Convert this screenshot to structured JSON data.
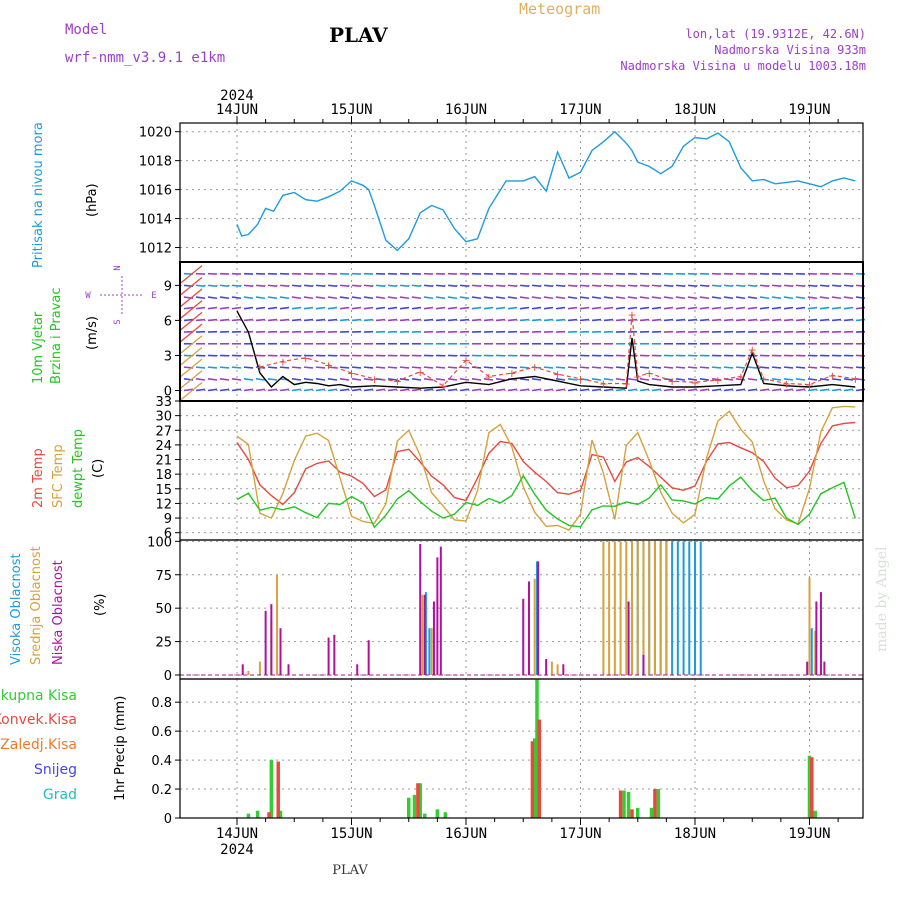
{
  "header": {
    "model_label": "Model",
    "model_name": "wrf-nmm_v3.9.1  e1km",
    "title": "PLAV",
    "meteogram_label": "Meteogram",
    "lonlat": "lon,lat (19.9312E, 42.6N)",
    "altitude": "Nadmorska Visina 933m",
    "model_altitude": "Nadmorska Visina u modelu 1003.18m",
    "year_top": "2024",
    "year_bottom": "2024",
    "footer": "PLAV",
    "watermark": "made by Angel"
  },
  "colors": {
    "pressure": "#1e9be0",
    "t2m": "#e8493f",
    "sfc": "#d6a23c",
    "dewpt": "#22c622",
    "total": "#33cc33",
    "convective": "#e8493f",
    "frozen": "#f07a2a",
    "snow": "#4444ee",
    "graupel": "#20c0c0",
    "high": "#1e9be0",
    "mid": "#d6a23c",
    "low": "#b0109e",
    "wind_speed": "#000000",
    "gust": "#e8493f",
    "axis_title": "#9b40c8",
    "meteogram": "#e0b060"
  },
  "chart_data": [
    {
      "type": "line",
      "panel": "pressure",
      "title_left": "Pritisak na nivou mora",
      "units": "(hPa)",
      "xdays": [
        "14JUN",
        "15JUN",
        "16JUN",
        "17JUN",
        "18JUN",
        "19JUN"
      ],
      "yticks": [
        1012,
        1014,
        1016,
        1018,
        1020
      ],
      "ylim": [
        1011,
        1020.6
      ],
      "series": [
        {
          "key": "pressure",
          "x": [
            0,
            0.04,
            0.1,
            0.18,
            0.25,
            0.32,
            0.4,
            0.5,
            0.6,
            0.7,
            0.8,
            0.9,
            1.0,
            1.1,
            1.15,
            1.2,
            1.3,
            1.4,
            1.5,
            1.6,
            1.7,
            1.8,
            1.9,
            2.0,
            2.1,
            2.2,
            2.35,
            2.5,
            2.6,
            2.7,
            2.8,
            2.9,
            3.0,
            3.1,
            3.2,
            3.3,
            3.4,
            3.45,
            3.5,
            3.6,
            3.7,
            3.8,
            3.9,
            4.0,
            4.1,
            4.2,
            4.3,
            4.4,
            4.5,
            4.6,
            4.7,
            4.8,
            4.9,
            5.0,
            5.1,
            5.2,
            5.3,
            5.4
          ],
          "values": [
            1013.6,
            1012.8,
            1012.9,
            1013.6,
            1014.7,
            1014.5,
            1015.6,
            1015.8,
            1015.3,
            1015.2,
            1015.5,
            1015.9,
            1016.6,
            1016.3,
            1016.0,
            1014.9,
            1012.5,
            1011.8,
            1012.6,
            1014.4,
            1014.9,
            1014.6,
            1013.3,
            1012.4,
            1012.6,
            1014.7,
            1016.6,
            1016.6,
            1016.9,
            1015.9,
            1018.6,
            1016.8,
            1017.2,
            1018.7,
            1019.3,
            1020.0,
            1019.2,
            1018.7,
            1017.9,
            1017.6,
            1017.1,
            1017.6,
            1019.0,
            1019.6,
            1019.5,
            1019.9,
            1019.3,
            1017.5,
            1016.6,
            1016.7,
            1016.4,
            1016.5,
            1016.6,
            1016.4,
            1016.2,
            1016.6,
            1016.8,
            1016.6
          ]
        }
      ]
    },
    {
      "type": "barbs",
      "panel": "wind",
      "title_left": "10m Vjetar",
      "title_left2": "Brzina i Pravac",
      "units": "(m/s)",
      "yticks": [
        0,
        3,
        6,
        9
      ],
      "ylim": [
        -0.9,
        11
      ],
      "compass": {
        "n": "N",
        "s": "S",
        "w": "W",
        "e": "E"
      },
      "series": [
        {
          "key": "wind_speed",
          "x": [
            0,
            0.1,
            0.2,
            0.3,
            0.4,
            0.5,
            0.6,
            0.7,
            0.8,
            0.9,
            1.0,
            1.2,
            1.4,
            1.6,
            1.8,
            2.0,
            2.2,
            2.4,
            2.6,
            2.8,
            3.0,
            3.2,
            3.4,
            3.45,
            3.5,
            3.6,
            3.8,
            4.0,
            4.2,
            4.4,
            4.5,
            4.6,
            4.8,
            5.0,
            5.2,
            5.4
          ],
          "values": [
            6.8,
            5.0,
            1.5,
            0.3,
            1.2,
            0.5,
            0.7,
            0.6,
            0.4,
            0.5,
            0.3,
            0.4,
            0.3,
            0.2,
            0.3,
            0.7,
            0.5,
            1.0,
            1.2,
            0.8,
            0.4,
            0.3,
            0.2,
            4.5,
            0.8,
            0.5,
            0.3,
            0.3,
            0.4,
            0.5,
            3.2,
            0.6,
            0.4,
            0.3,
            0.5,
            0.3
          ]
        },
        {
          "key": "gust",
          "x": [
            0.2,
            0.4,
            0.6,
            0.8,
            1.0,
            1.2,
            1.4,
            1.6,
            1.8,
            2.0,
            2.2,
            2.4,
            2.6,
            2.8,
            3.0,
            3.2,
            3.4,
            3.45,
            3.5,
            3.6,
            3.8,
            4.0,
            4.2,
            4.4,
            4.5,
            4.6,
            4.8,
            5.0,
            5.2,
            5.4
          ],
          "values": [
            2.0,
            2.5,
            2.8,
            2.2,
            1.5,
            1.0,
            0.8,
            1.6,
            0.4,
            2.6,
            1.2,
            1.5,
            2.0,
            1.4,
            1.0,
            0.6,
            0.6,
            6.5,
            1.2,
            1.5,
            0.8,
            0.7,
            0.9,
            1.2,
            3.5,
            1.0,
            0.6,
            0.5,
            1.3,
            1.0
          ]
        }
      ]
    },
    {
      "type": "line",
      "panel": "temperature",
      "title_left": "2m Temp",
      "title_left2": "SFC Temp",
      "title_left3": "dewpt Temp",
      "units": "(C)",
      "yticks": [
        6,
        9,
        12,
        15,
        18,
        21,
        24,
        27,
        30,
        33
      ],
      "ylim": [
        4.5,
        33
      ],
      "series": [
        {
          "key": "t2m",
          "x": [
            0,
            0.1,
            0.2,
            0.3,
            0.4,
            0.5,
            0.6,
            0.7,
            0.8,
            0.9,
            1.0,
            1.1,
            1.2,
            1.3,
            1.4,
            1.5,
            1.6,
            1.7,
            1.8,
            1.9,
            2.0,
            2.1,
            2.2,
            2.3,
            2.4,
            2.5,
            2.6,
            2.7,
            2.8,
            2.9,
            3.0,
            3.1,
            3.2,
            3.3,
            3.4,
            3.5,
            3.6,
            3.7,
            3.8,
            3.9,
            4.0,
            4.1,
            4.2,
            4.3,
            4.4,
            4.5,
            4.6,
            4.7,
            4.8,
            4.9,
            5.0,
            5.1,
            5.2,
            5.3,
            5.4
          ],
          "values": [
            24.5,
            21.0,
            15.8,
            13.6,
            11.8,
            14.2,
            19.1,
            20.2,
            20.7,
            18.4,
            17.6,
            16.1,
            13.4,
            14.8,
            22.6,
            23.1,
            20.5,
            17.6,
            15.8,
            13.2,
            12.6,
            17.2,
            22.3,
            24.7,
            24.3,
            20.6,
            18.4,
            16.5,
            14.2,
            13.9,
            14.7,
            22.0,
            21.5,
            16.5,
            20.5,
            21.4,
            19.6,
            17.4,
            15.2,
            14.7,
            15.6,
            20.6,
            24.2,
            24.5,
            23.4,
            22.4,
            20.6,
            17.2,
            15.2,
            15.7,
            18.6,
            24.3,
            27.9,
            28.4,
            28.6
          ]
        },
        {
          "key": "sfc",
          "x": [
            0,
            0.1,
            0.2,
            0.3,
            0.4,
            0.5,
            0.6,
            0.7,
            0.8,
            0.9,
            1.0,
            1.1,
            1.2,
            1.3,
            1.4,
            1.5,
            1.6,
            1.7,
            1.8,
            1.9,
            2.0,
            2.1,
            2.2,
            2.3,
            2.4,
            2.5,
            2.6,
            2.7,
            2.8,
            2.9,
            3.0,
            3.1,
            3.2,
            3.3,
            3.4,
            3.5,
            3.6,
            3.7,
            3.8,
            3.9,
            4.0,
            4.1,
            4.2,
            4.3,
            4.4,
            4.5,
            4.6,
            4.7,
            4.8,
            4.9,
            5.0,
            5.1,
            5.2,
            5.3,
            5.4
          ],
          "values": [
            25.8,
            24.1,
            10.0,
            9.0,
            14.0,
            20.8,
            25.8,
            26.4,
            24.9,
            17.2,
            9.4,
            8.3,
            7.9,
            11.9,
            24.8,
            27.0,
            21.8,
            14.2,
            11.5,
            8.6,
            8.4,
            14.6,
            26.5,
            28.2,
            23.6,
            15.4,
            10.2,
            7.3,
            7.5,
            6.5,
            9.8,
            25.0,
            18.2,
            8.7,
            23.9,
            26.5,
            20.8,
            14.3,
            10.0,
            8.0,
            9.8,
            21.2,
            28.9,
            30.9,
            27.2,
            24.6,
            16.6,
            10.9,
            8.6,
            7.8,
            15.1,
            26.7,
            31.6,
            31.9,
            31.8
          ]
        },
        {
          "key": "dewpt",
          "x": [
            0,
            0.1,
            0.2,
            0.3,
            0.4,
            0.5,
            0.6,
            0.7,
            0.8,
            0.9,
            1.0,
            1.1,
            1.2,
            1.3,
            1.4,
            1.5,
            1.6,
            1.7,
            1.8,
            1.9,
            2.0,
            2.1,
            2.2,
            2.3,
            2.4,
            2.5,
            2.6,
            2.7,
            2.8,
            2.9,
            3.0,
            3.1,
            3.2,
            3.3,
            3.4,
            3.5,
            3.6,
            3.7,
            3.8,
            3.9,
            4.0,
            4.1,
            4.2,
            4.3,
            4.4,
            4.5,
            4.6,
            4.7,
            4.8,
            4.9,
            5.0,
            5.1,
            5.2,
            5.3,
            5.4
          ],
          "values": [
            12.8,
            14.1,
            10.6,
            11.2,
            10.7,
            11.3,
            10.1,
            9.1,
            12.0,
            11.8,
            13.4,
            12.1,
            7.1,
            9.6,
            12.9,
            14.6,
            12.4,
            10.4,
            9.0,
            9.8,
            12.2,
            11.6,
            13.0,
            12.1,
            13.6,
            17.7,
            13.9,
            10.6,
            8.8,
            7.5,
            7.2,
            10.7,
            11.5,
            11.4,
            12.3,
            11.8,
            13.1,
            15.8,
            12.7,
            12.5,
            11.9,
            13.2,
            12.9,
            15.6,
            17.4,
            14.6,
            12.6,
            13.1,
            9.0,
            7.7,
            9.8,
            14.0,
            15.2,
            16.3,
            8.9
          ]
        }
      ]
    },
    {
      "type": "bar",
      "panel": "clouds",
      "title_left": "Visoka Oblacnost",
      "title_left2": "Srednja Oblacnost",
      "title_left3": "Niska Oblacnost",
      "units": "(%)",
      "yticks": [
        0,
        25,
        50,
        75,
        100
      ],
      "ylim": [
        -3,
        101
      ],
      "series": [
        {
          "key": "high",
          "x": [
            1.65,
            1.68,
            2.62,
            3.5,
            3.55,
            3.6,
            3.65,
            3.7,
            3.75,
            3.8,
            3.85,
            3.9,
            3.95,
            4.0,
            4.05,
            5.02
          ],
          "values": [
            62,
            35,
            85,
            100,
            100,
            100,
            100,
            100,
            100,
            100,
            100,
            100,
            100,
            100,
            100,
            35
          ]
        },
        {
          "key": "mid",
          "x": [
            0.1,
            0.2,
            0.3,
            0.35,
            1.62,
            1.7,
            2.6,
            2.75,
            2.8,
            3.2,
            3.25,
            3.3,
            3.35,
            3.4,
            3.45,
            3.5,
            3.55,
            3.6,
            3.65,
            3.7,
            3.75,
            5.0,
            5.05
          ],
          "values": [
            3,
            10,
            42,
            75,
            60,
            35,
            72,
            10,
            8,
            100,
            100,
            100,
            100,
            100,
            100,
            100,
            100,
            100,
            100,
            100,
            100,
            73,
            33
          ]
        },
        {
          "key": "low",
          "x": [
            0.05,
            0.25,
            0.3,
            0.38,
            0.45,
            0.8,
            0.85,
            1.05,
            1.15,
            1.6,
            1.64,
            1.72,
            1.75,
            1.78,
            2.5,
            2.55,
            2.63,
            2.7,
            2.85,
            3.42,
            3.55,
            4.98,
            5.06,
            5.1,
            5.13
          ],
          "values": [
            8,
            48,
            53,
            35,
            8,
            28,
            30,
            8,
            26,
            98,
            60,
            55,
            88,
            96,
            57,
            70,
            85,
            12,
            8,
            55,
            15,
            10,
            55,
            62,
            10
          ]
        }
      ]
    },
    {
      "type": "bar",
      "panel": "precip",
      "legend": [
        "Ukupna Kisa",
        "Konvek.Kisa",
        "Zaledj.Kisa",
        "Snijeg",
        "Grad"
      ],
      "units": "1hr Precip (mm)",
      "yticks": [
        0,
        0.2,
        0.4,
        0.6,
        0.8
      ],
      "ylim": [
        0,
        0.96
      ],
      "series": [
        {
          "key": "total",
          "x": [
            0.1,
            0.18,
            0.3,
            0.38,
            1.5,
            1.55,
            1.6,
            1.64,
            1.75,
            1.82,
            2.6,
            2.62,
            3.38,
            3.42,
            3.5,
            3.62,
            3.68,
            5.0,
            5.05
          ],
          "values": [
            0.03,
            0.05,
            0.4,
            0.05,
            0.14,
            0.16,
            0.24,
            0.03,
            0.06,
            0.04,
            0.55,
            0.96,
            0.19,
            0.18,
            0.07,
            0.07,
            0.2,
            0.43,
            0.05
          ]
        },
        {
          "key": "convective",
          "x": [
            0.28,
            0.36,
            1.58,
            2.58,
            2.64,
            3.35,
            3.45,
            3.65,
            5.02
          ],
          "values": [
            0.04,
            0.39,
            0.24,
            0.53,
            0.68,
            0.19,
            0.06,
            0.2,
            0.42
          ]
        }
      ]
    }
  ]
}
